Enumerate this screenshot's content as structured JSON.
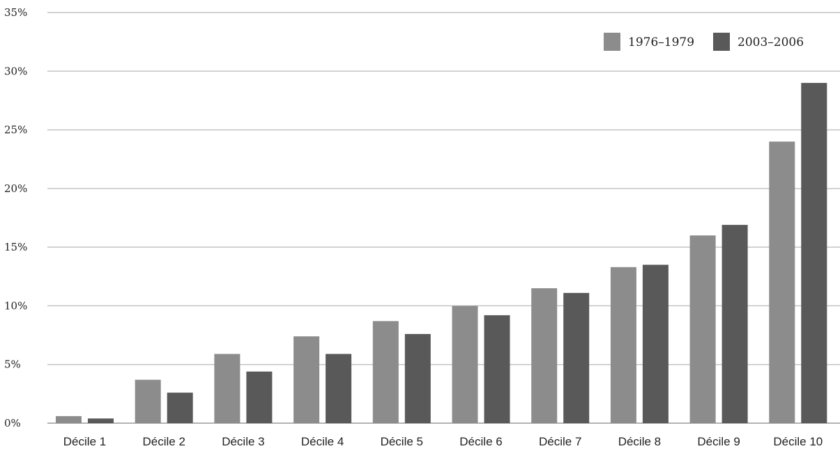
{
  "chart_data": {
    "type": "bar",
    "categories": [
      "Décile 1",
      "Décile 2",
      "Décile 3",
      "Décile 4",
      "Décile 5",
      "Décile 6",
      "Décile 7",
      "Décile 8",
      "Décile 9",
      "Décile 10"
    ],
    "series": [
      {
        "name": "1976–1979",
        "color": "#8c8c8c",
        "values": [
          0.6,
          3.7,
          5.9,
          7.4,
          8.7,
          10.0,
          11.5,
          13.3,
          16.0,
          24.0
        ]
      },
      {
        "name": "2003–2006",
        "color": "#595959",
        "values": [
          0.4,
          2.6,
          4.4,
          5.9,
          7.6,
          9.2,
          11.1,
          13.5,
          16.9,
          29.0
        ]
      }
    ],
    "title": "",
    "xlabel": "",
    "ylabel": "",
    "ylim": [
      0,
      35
    ],
    "yticks": [
      0,
      5,
      10,
      15,
      20,
      25,
      30,
      35
    ],
    "ytick_labels": [
      "0%",
      "5%",
      "10%",
      "15%",
      "20%",
      "25%",
      "30%",
      "35%"
    ],
    "grid": true,
    "legend_position": "top-right"
  }
}
